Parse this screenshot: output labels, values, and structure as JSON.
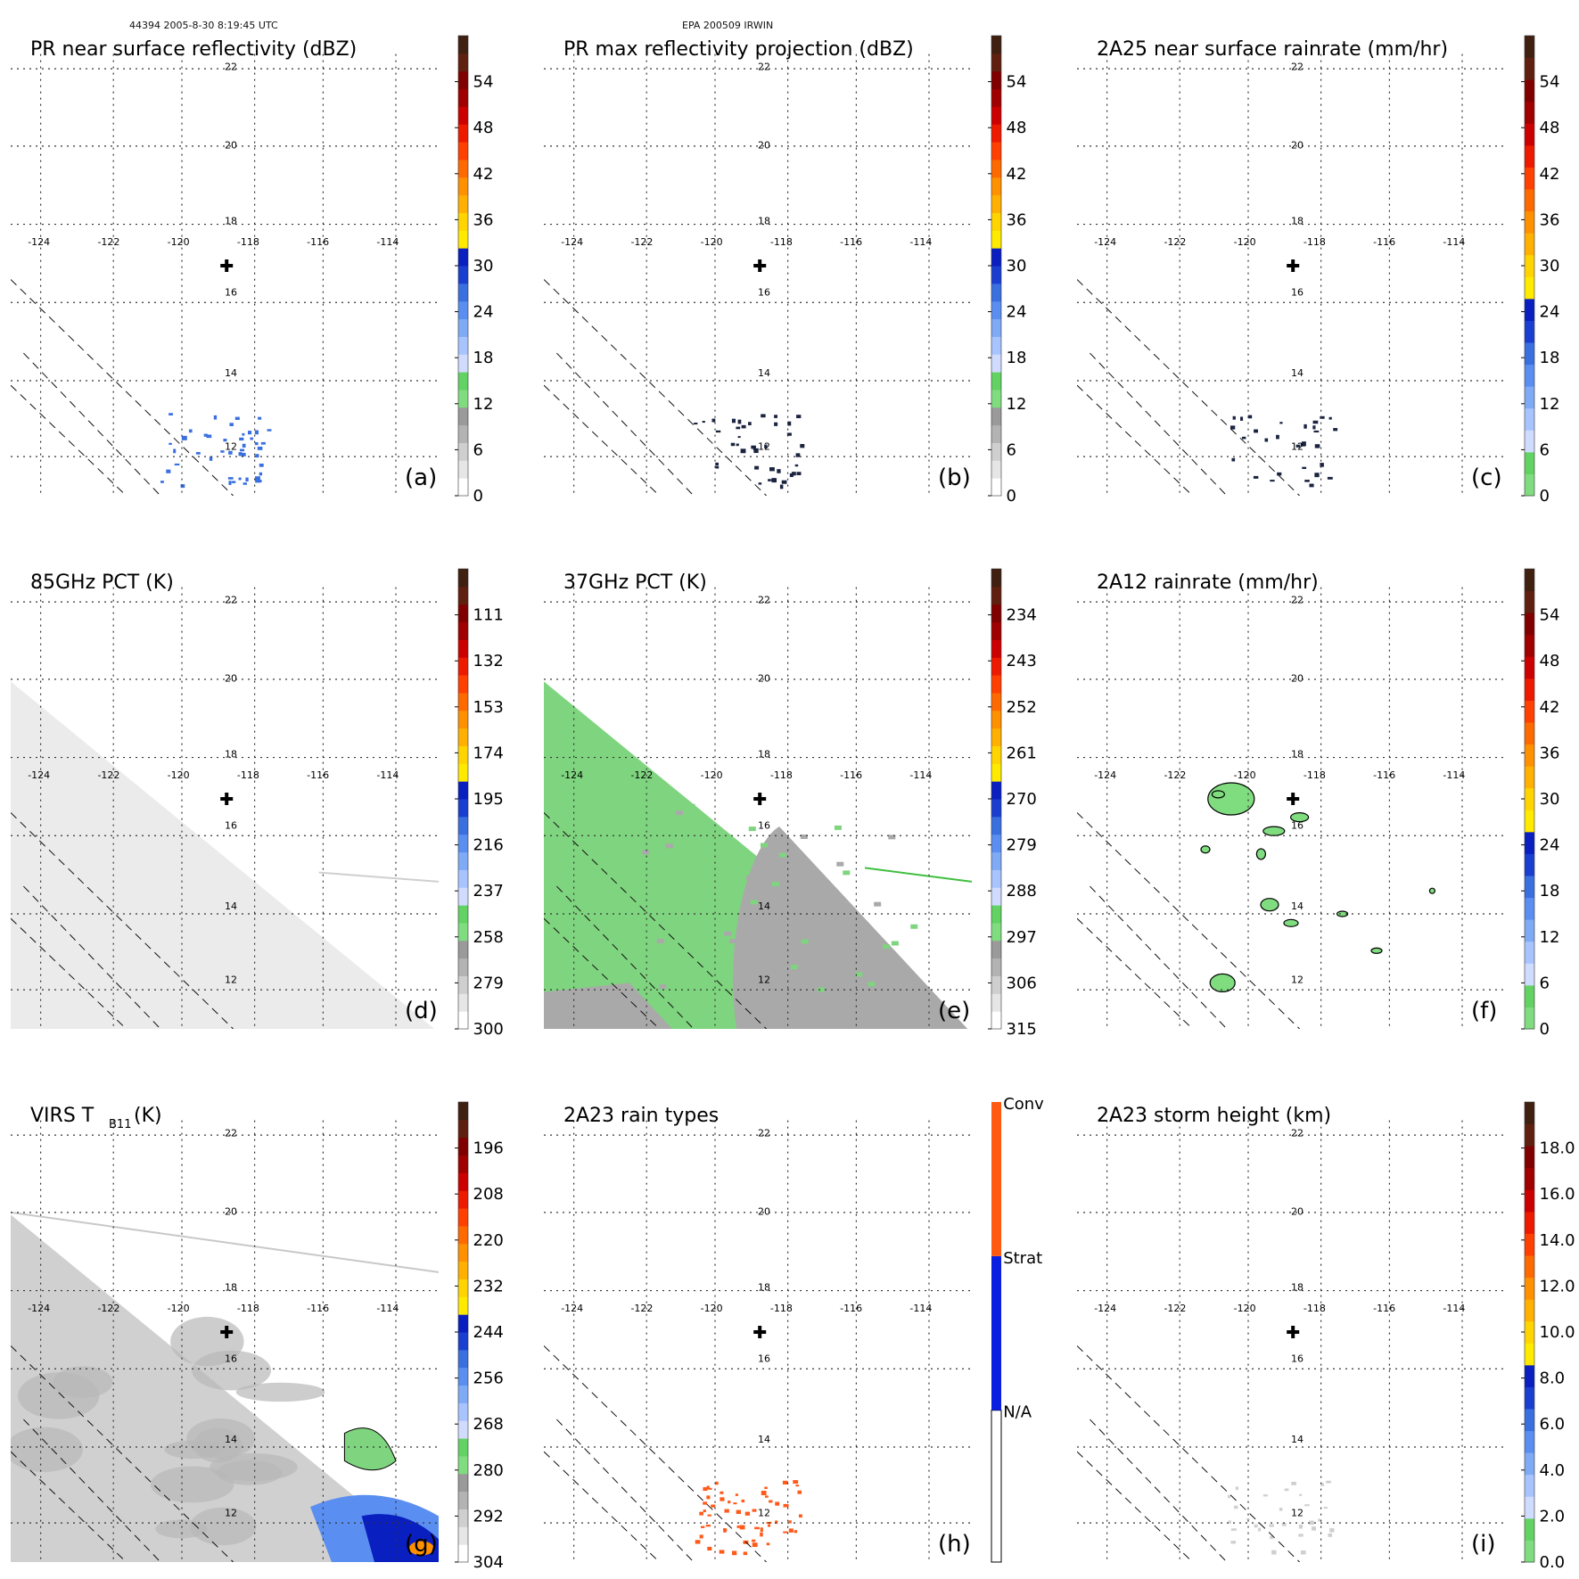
{
  "header": {
    "left": "44394 2005-8-30 8:19:45 UTC",
    "center": "EPA 200509 IRWIN"
  },
  "chart_data": [
    {
      "id": "a",
      "type": "heatmap",
      "title": "PR near surface reflectivity (dBZ)",
      "panel_label": "(a)",
      "colorbar": {
        "ticks": [
          "0",
          "6",
          "12",
          "18",
          "24",
          "30",
          "36",
          "42",
          "48",
          "54"
        ],
        "range": [
          0,
          60
        ],
        "palette": "radar"
      },
      "lon_labels": [
        "-124",
        "-122",
        "-120",
        "-118",
        "-116",
        "-114"
      ],
      "lat_labels": [
        "12",
        "14",
        "16",
        "18",
        "20",
        "22"
      ],
      "swath": "none",
      "features": [
        {
          "kind": "scatter",
          "color": "#3a6fe0",
          "count": 45,
          "region": "lower-center"
        }
      ]
    },
    {
      "id": "b",
      "type": "heatmap",
      "title": "PR max reflectivity projection (dBZ)",
      "panel_label": "(b)",
      "colorbar": {
        "ticks": [
          "0",
          "6",
          "12",
          "18",
          "24",
          "30",
          "36",
          "42",
          "48",
          "54"
        ],
        "range": [
          0,
          60
        ],
        "palette": "radar"
      },
      "lon_labels": [
        "-124",
        "-122",
        "-120",
        "-118",
        "-116",
        "-114"
      ],
      "lat_labels": [
        "12",
        "14",
        "16",
        "18",
        "20",
        "22"
      ],
      "swath": "none",
      "features": [
        {
          "kind": "scatter",
          "color": "#1a2340",
          "count": 40,
          "region": "lower-center"
        }
      ]
    },
    {
      "id": "c",
      "type": "heatmap",
      "title": "2A25 near surface rainrate (mm/hr)",
      "panel_label": "(c)",
      "colorbar": {
        "ticks": [
          "0",
          "6",
          "12",
          "18",
          "24",
          "30",
          "36",
          "42",
          "48",
          "54"
        ],
        "range": [
          0,
          60
        ],
        "palette": "rain"
      },
      "lon_labels": [
        "-124",
        "-122",
        "-120",
        "-118",
        "-116",
        "-114"
      ],
      "lat_labels": [
        "12",
        "14",
        "16",
        "18",
        "20",
        "22"
      ],
      "swath": "none",
      "features": [
        {
          "kind": "scatter",
          "color": "#1a2340",
          "count": 30,
          "region": "lower-center"
        }
      ]
    },
    {
      "id": "d",
      "type": "heatmap",
      "title": "85GHz PCT (K)",
      "panel_label": "(d)",
      "colorbar": {
        "ticks": [
          "300",
          "279",
          "258",
          "237",
          "216",
          "195",
          "174",
          "153",
          "132",
          "111"
        ],
        "range": [
          300,
          90
        ],
        "palette": "radar"
      },
      "lon_labels": [
        "-124",
        "-122",
        "-120",
        "-118",
        "-116",
        "-114"
      ],
      "lat_labels": [
        "12",
        "14",
        "16",
        "18",
        "20",
        "22"
      ],
      "swath": "light-gray",
      "features": [
        {
          "kind": "line",
          "color": "#cfcfcf",
          "from": [
            0.72,
            0.66
          ],
          "to": [
            1.0,
            0.68
          ]
        }
      ]
    },
    {
      "id": "e",
      "type": "heatmap",
      "title": "37GHz PCT (K)",
      "panel_label": "(e)",
      "colorbar": {
        "ticks": [
          "315",
          "306",
          "297",
          "288",
          "279",
          "270",
          "261",
          "252",
          "243",
          "234"
        ],
        "range": [
          315,
          225
        ],
        "palette": "radar"
      },
      "lon_labels": [
        "-124",
        "-122",
        "-120",
        "-118",
        "-116",
        "-114"
      ],
      "lat_labels": [
        "12",
        "14",
        "16",
        "18",
        "20",
        "22"
      ],
      "swath": "green-gray",
      "features": [
        {
          "kind": "line",
          "color": "#3fbf3f",
          "from": [
            0.75,
            0.65
          ],
          "to": [
            1.0,
            0.68
          ]
        }
      ]
    },
    {
      "id": "f",
      "type": "heatmap",
      "title": "2A12 rainrate (mm/hr)",
      "panel_label": "(f)",
      "colorbar": {
        "ticks": [
          "0",
          "6",
          "12",
          "18",
          "24",
          "30",
          "36",
          "42",
          "48",
          "54"
        ],
        "range": [
          0,
          60
        ],
        "palette": "rain"
      },
      "lon_labels": [
        "-124",
        "-122",
        "-120",
        "-118",
        "-116",
        "-114"
      ],
      "lat_labels": [
        "12",
        "14",
        "16",
        "18",
        "20",
        "22"
      ],
      "swath": "none",
      "features": [
        {
          "kind": "blobs",
          "color": "#7fdc7f"
        }
      ]
    },
    {
      "id": "g",
      "type": "heatmap",
      "title": "VIRS T",
      "title_sub": "B11",
      "title_suffix": " (K)",
      "panel_label": "(g)",
      "colorbar": {
        "ticks": [
          "304",
          "292",
          "280",
          "268",
          "256",
          "244",
          "232",
          "220",
          "208",
          "196"
        ],
        "range": [
          304,
          184
        ],
        "palette": "radar"
      },
      "lon_labels": [
        "-124",
        "-122",
        "-120",
        "-118",
        "-116",
        "-114"
      ],
      "lat_labels": [
        "12",
        "14",
        "16",
        "18",
        "20",
        "22"
      ],
      "swath": "mid-gray",
      "features": [
        {
          "kind": "line",
          "color": "#c8c8c8",
          "from": [
            0.0,
            0.24
          ],
          "to": [
            1.0,
            0.37
          ]
        }
      ]
    },
    {
      "id": "h",
      "type": "heatmap",
      "title": "2A23 rain types",
      "panel_label": "(h)",
      "colorbar": {
        "categorical": true,
        "ticks": [
          "N/A",
          "Strat",
          "Conv"
        ]
      },
      "lon_labels": [
        "-124",
        "-122",
        "-120",
        "-118",
        "-116",
        "-114"
      ],
      "lat_labels": [
        "12",
        "14",
        "16",
        "18",
        "20",
        "22"
      ],
      "swath": "none",
      "features": [
        {
          "kind": "scatter",
          "color": "#ff5a1a",
          "count": 60,
          "region": "lower-center"
        }
      ]
    },
    {
      "id": "i",
      "type": "heatmap",
      "title": "2A23 storm height (km)",
      "panel_label": "(i)",
      "colorbar": {
        "ticks": [
          "0.0",
          "2.0",
          "4.0",
          "6.0",
          "8.0",
          "10.0",
          "12.0",
          "14.0",
          "16.0",
          "18.0"
        ],
        "range": [
          0,
          20
        ],
        "palette": "rain"
      },
      "lon_labels": [
        "-124",
        "-122",
        "-120",
        "-118",
        "-116",
        "-114"
      ],
      "lat_labels": [
        "12",
        "14",
        "16",
        "18",
        "20",
        "22"
      ],
      "swath": "none",
      "features": [
        {
          "kind": "scatter",
          "color": "#cfcfcf",
          "count": 30,
          "region": "lower-center"
        }
      ]
    }
  ],
  "colors": {
    "radar": [
      "#ffffff",
      "#e6e6e6",
      "#cfcfcf",
      "#b3b3b3",
      "#9a9a9a",
      "#7fdc7f",
      "#62d262",
      "#d0dcff",
      "#a8c4ff",
      "#7faaf5",
      "#5a8ef0",
      "#3a6fe0",
      "#1a3fd0",
      "#0a1fc0",
      "#ffea00",
      "#ffd400",
      "#ffb000",
      "#ff9000",
      "#ff6a00",
      "#ff4000",
      "#ee1a00",
      "#cc0000",
      "#a00000",
      "#800000",
      "#602010",
      "#402010"
    ],
    "rain": [
      "#7fdc7f",
      "#62d262",
      "#d0dcff",
      "#a8c4ff",
      "#7faaf5",
      "#5a8ef0",
      "#3a6fe0",
      "#1a3fd0",
      "#0a1fc0",
      "#ffea00",
      "#ffd400",
      "#ffb000",
      "#ff9000",
      "#ff6a00",
      "#ff4000",
      "#ee1a00",
      "#cc0000",
      "#a00000",
      "#800000",
      "#602010",
      "#402010"
    ]
  }
}
